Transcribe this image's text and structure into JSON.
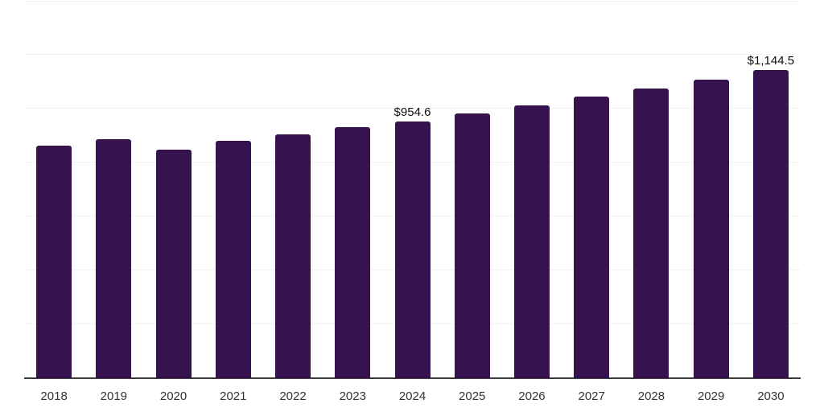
{
  "chart_data": {
    "type": "bar",
    "title": "",
    "xlabel": "",
    "ylabel": "",
    "categories": [
      "2018",
      "2019",
      "2020",
      "2021",
      "2022",
      "2023",
      "2024",
      "2025",
      "2026",
      "2027",
      "2028",
      "2029",
      "2030"
    ],
    "values": [
      865,
      887,
      849,
      881,
      906,
      932,
      954.6,
      983.8,
      1013.9,
      1044.9,
      1076.9,
      1109.9,
      1144.5
    ],
    "value_labels": {
      "2024": "$954.6",
      "2030": "$1,144.5"
    },
    "ylim": [
      0,
      1400
    ],
    "gridline_values": [
      200,
      400,
      600,
      800,
      1000,
      1200,
      1400
    ],
    "grid": "horizontal-only",
    "legend_position": "none",
    "y_axis_tick_labels_visible": false,
    "colors": {
      "bar": "#36124F",
      "gridline": "#F2F2F2",
      "axis": "#3D3D3D",
      "value_label_text": "#111111",
      "tick_label_text": "#333333",
      "background": "#FFFFFF"
    }
  }
}
